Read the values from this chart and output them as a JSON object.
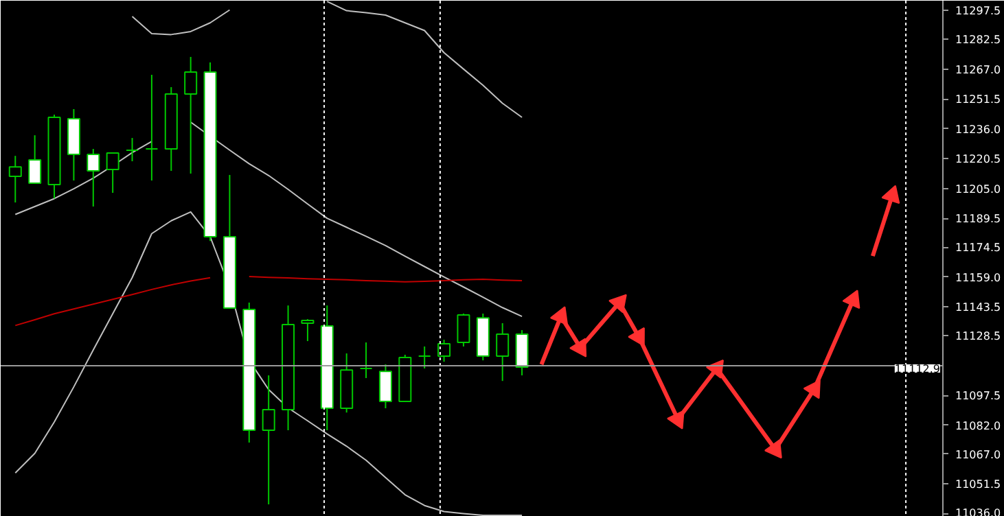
{
  "chart_data": {
    "type": "candlestick",
    "categories": [
      null,
      null,
      null,
      null,
      null,
      null,
      null,
      null,
      null,
      null,
      null,
      null,
      null,
      null,
      null,
      null,
      null,
      null,
      null,
      null,
      null,
      null,
      null,
      null,
      null,
      null,
      null,
      null,
      null,
      null,
      null,
      null,
      null,
      null,
      null,
      null,
      null,
      null,
      null,
      null,
      null,
      null,
      null,
      null,
      null,
      null,
      null,
      null
    ],
    "ohlc": [
      [
        11211.3,
        11221.9,
        11197.7,
        11216.2
      ],
      [
        11219.8,
        11232.6,
        11207.7,
        11207.7
      ],
      [
        11207.0,
        11243.3,
        11199.8,
        11241.9
      ],
      [
        11241.2,
        11246.2,
        11209.1,
        11222.7
      ],
      [
        11222.7,
        11225.5,
        11195.6,
        11214.1
      ],
      [
        11214.8,
        11223.4,
        11202.7,
        11223.4
      ],
      [
        11224.8,
        11231.2,
        11219.1,
        11224.8
      ],
      [
        11225.5,
        11264.0,
        11209.1,
        11225.5
      ],
      [
        11225.5,
        11257.6,
        11214.1,
        11254.0
      ],
      [
        11254.0,
        11273.3,
        11212.7,
        11265.4
      ],
      [
        11265.4,
        11270.4,
        11177.7,
        11179.9
      ],
      [
        11179.9,
        11212.0,
        11142.8,
        11142.8
      ],
      [
        11142.1,
        11145.7,
        11073.0,
        11079.4
      ],
      [
        11079.4,
        11107.9,
        11040.9,
        11090.1
      ],
      [
        11090.1,
        11144.2,
        11079.4,
        11134.3
      ],
      [
        11135.0,
        11137.1,
        11125.7,
        11136.4
      ],
      [
        11133.6,
        11144.2,
        11079.4,
        11090.8
      ],
      [
        11090.8,
        11119.3,
        11088.6,
        11110.7
      ],
      [
        11111.5,
        11125.0,
        11106.5,
        11111.5
      ],
      [
        11110.0,
        11113.6,
        11090.8,
        11094.4
      ],
      [
        11094.4,
        11118.6,
        11094.4,
        11117.2
      ],
      [
        11117.9,
        11122.9,
        11111.5,
        11117.9
      ],
      [
        11117.9,
        11126.4,
        11115.0,
        11124.3
      ],
      [
        11125.0,
        11140.0,
        11122.9,
        11139.3
      ],
      [
        11137.8,
        11140.0,
        11115.7,
        11117.9
      ],
      [
        11117.9,
        11135.0,
        11105.0,
        11129.3
      ],
      [
        11129.3,
        11131.4,
        11107.9,
        11112.2
      ],
      null,
      null,
      null,
      null,
      null,
      null,
      null,
      null,
      null,
      null,
      null,
      null,
      null,
      null,
      null,
      null,
      null,
      null,
      null,
      null,
      null
    ],
    "color": "#00c800",
    "colors": [
      "#000000",
      "#ffffff",
      "#000000",
      "#ffffff",
      "#ffffff",
      "#000000",
      "#00c800",
      "#00c800",
      "#000000",
      "#000000",
      "#ffffff",
      "#ffffff",
      "#ffffff",
      "#000000",
      "#000000",
      "#000000",
      "#ffffff",
      "#000000",
      "#00c800",
      "#ffffff",
      "#000000",
      "#00c800",
      "#000000",
      "#000000",
      "#ffffff",
      "#000000",
      "#ffffff",
      null,
      null,
      null,
      null,
      null,
      null,
      null,
      null,
      null,
      null,
      null,
      null,
      null,
      null,
      null,
      null,
      null,
      null,
      null,
      null,
      null
    ],
    "series": [
      {
        "type": "line",
        "color": "#c0c0c0",
        "values": [
          11191.5,
          11195.6,
          11199.7,
          11204.8,
          11210.3,
          11216.8,
          11223.6,
          11229.4,
          null,
          11239.4,
          11232.1,
          11224.9,
          11217.8,
          11211.7,
          11204.5,
          11196.9,
          11189.5,
          11184.8,
          11180.1,
          11175.3,
          11169.8,
          11164.4,
          11159.0,
          11153.8,
          11148.5,
          11143.1,
          11138.5,
          null,
          null,
          null,
          null,
          null,
          null,
          null,
          null,
          null,
          null,
          null,
          null,
          null,
          null,
          null,
          null,
          null,
          null,
          null,
          null,
          null
        ]
      },
      {
        "type": "line",
        "color": "#c0c0c0",
        "values": [
          null,
          null,
          null,
          null,
          null,
          null,
          11294.3,
          11285.4,
          11284.9,
          11286.5,
          11291.0,
          11297.7,
          null,
          null,
          null,
          null,
          11302.1,
          11297.3,
          11296.3,
          11295.0,
          11291.0,
          11287.0,
          11275.5,
          11267.0,
          11258.6,
          11249.2,
          11241.9,
          null,
          null,
          null,
          null,
          null,
          null,
          null,
          null,
          null,
          null,
          null,
          null,
          null,
          null,
          null,
          null,
          null,
          null,
          null,
          null,
          null
        ]
      },
      {
        "type": "line",
        "color": "#c0c0c0",
        "values": [
          11057.2,
          11067.4,
          11083.7,
          11101.9,
          11121.1,
          11139.9,
          11158.7,
          11181.5,
          11188.2,
          11192.8,
          11179.9,
          11153.7,
          11115.7,
          11100.5,
          11091.0,
          11084.3,
          11077.5,
          11071.1,
          11063.8,
          11054.8,
          11045.9,
          11040.3,
          11037.2,
          11036.1,
          11035.2,
          11035.2,
          11035.2,
          null,
          null,
          null,
          null,
          null,
          null,
          null,
          null,
          null,
          null,
          null,
          null,
          null,
          null,
          null,
          null,
          null,
          null,
          null,
          null,
          null
        ]
      },
      {
        "type": "line",
        "color": "#c00000",
        "values": [
          11133.8,
          11136.8,
          11139.9,
          11142.4,
          11144.9,
          11147.4,
          11149.9,
          11152.5,
          11154.9,
          11156.9,
          11158.6,
          null,
          11159.2,
          11158.8,
          11158.5,
          11158.1,
          11157.8,
          11157.5,
          11157.1,
          11156.8,
          11156.5,
          11156.7,
          11157.1,
          11157.5,
          11157.8,
          11157.4,
          11157.1,
          null,
          null,
          null,
          null,
          null,
          null,
          null,
          null,
          null,
          null,
          null,
          null,
          null,
          null,
          null,
          null,
          null,
          null,
          null,
          null,
          null
        ]
      },
      {
        "type": "line",
        "color": "#ff3030",
        "marker": "triangle",
        "values": [
          null,
          null,
          null,
          null,
          null,
          null,
          null,
          null,
          null,
          null,
          null,
          null,
          null,
          null,
          null,
          null,
          null,
          null,
          null,
          null,
          null,
          null,
          null,
          null,
          null,
          null,
          null,
          11113.6,
          11138.5,
          11122.2,
          11134.0,
          11145.7,
          11127.9,
          11106.5,
          11085.1,
          11098.3,
          11111.5,
          11097.5,
          11083.4,
          11069.4,
          11085.1,
          11100.8,
          11124.0,
          11147.1,
          null,
          null,
          null,
          null
        ]
      },
      {
        "type": "line",
        "color": "#ff3030",
        "marker": "triangle",
        "values": [
          null,
          null,
          null,
          null,
          null,
          null,
          null,
          null,
          null,
          null,
          null,
          null,
          null,
          null,
          null,
          null,
          null,
          null,
          null,
          null,
          null,
          null,
          null,
          null,
          null,
          null,
          null,
          null,
          null,
          null,
          null,
          null,
          null,
          null,
          null,
          null,
          null,
          null,
          null,
          null,
          null,
          null,
          null,
          null,
          11169.9,
          11201.3,
          null,
          null
        ]
      }
    ],
    "ylim": [
      11034.5,
      11302.5
    ],
    "yticks": [
      {
        "value": 11297.5,
        "label": "11297.5"
      },
      {
        "value": 11282.5,
        "label": "11282.5"
      },
      {
        "value": 11267.0,
        "label": "11267.0"
      },
      {
        "value": 11251.5,
        "label": "11251.5"
      },
      {
        "value": 11236.0,
        "label": "11236.0"
      },
      {
        "value": 11220.5,
        "label": "11220.5"
      },
      {
        "value": 11205.0,
        "label": "11205.0"
      },
      {
        "value": 11189.5,
        "label": "11189.5"
      },
      {
        "value": 11174.5,
        "label": "11174.5"
      },
      {
        "value": 11159.0,
        "label": "11159.0"
      },
      {
        "value": 11143.5,
        "label": "11143.5"
      },
      {
        "value": 11128.5,
        "label": "11128.5"
      },
      {
        "value": 11097.5,
        "label": "11097.5"
      },
      {
        "value": 11082.0,
        "label": "11082.0"
      },
      {
        "value": 11067.0,
        "label": "11067.0"
      },
      {
        "value": 11051.5,
        "label": "11051.5"
      },
      {
        "value": 11036.0,
        "label": "11036.0"
      }
    ],
    "ref_lines": [
      {
        "axis": "y",
        "value": 11112.9,
        "label": "11112.9",
        "color": "#9a9a9a",
        "line_style": "solid"
      }
    ],
    "tick_labels": "y",
    "grid": false
  }
}
